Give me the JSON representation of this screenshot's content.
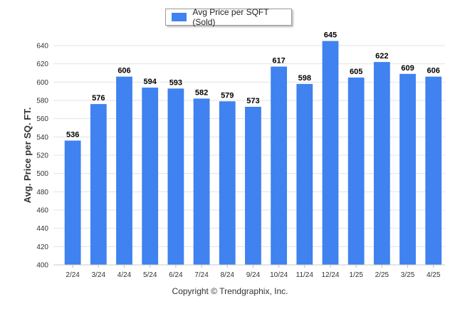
{
  "chart_data": {
    "type": "bar",
    "title": "",
    "xlabel": "",
    "ylabel": "Avg. Price per SQ. FT.",
    "categories": [
      "2/24",
      "3/24",
      "4/24",
      "5/24",
      "6/24",
      "7/24",
      "8/24",
      "9/24",
      "10/24",
      "11/24",
      "12/24",
      "1/25",
      "2/25",
      "3/25",
      "4/25"
    ],
    "series": [
      {
        "name": "Avg Price per SQFT (Sold)",
        "values": [
          536,
          576,
          606,
          594,
          593,
          582,
          579,
          573,
          617,
          598,
          645,
          605,
          622,
          609,
          606
        ]
      }
    ],
    "ylim": [
      400,
      640
    ],
    "yticks": [
      400,
      420,
      440,
      460,
      480,
      500,
      520,
      540,
      560,
      580,
      600,
      620,
      640
    ],
    "grid": true,
    "legend_position": "top-center",
    "data_labels": true,
    "colors": {
      "bar": "#3f82f0",
      "grid": "#e3e3e3"
    }
  },
  "footer": {
    "copyright": "Copyright © Trendgraphix, Inc."
  }
}
